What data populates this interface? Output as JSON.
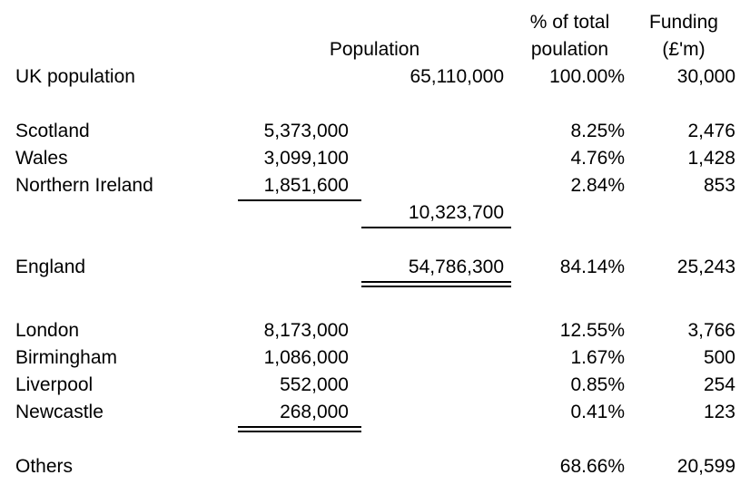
{
  "sheet": {
    "headers": {
      "population": "Population",
      "pct_total_line1": "% of total",
      "pct_total_line2": "poulation",
      "funding_line1": "Funding",
      "funding_line2": "(£'m)"
    },
    "rows": [
      {
        "label": "UK population",
        "pop_sub": "",
        "pop_total": "65,110,000",
        "pct": "100.00%",
        "funding": "30,000"
      },
      {
        "label": "Scotland",
        "pop_sub": "5,373,000",
        "pop_total": "",
        "pct": "8.25%",
        "funding": "2,476"
      },
      {
        "label": "Wales",
        "pop_sub": "3,099,100",
        "pop_total": "",
        "pct": "4.76%",
        "funding": "1,428"
      },
      {
        "label": "Northern Ireland",
        "pop_sub": "1,851,600",
        "pop_total": "",
        "pct": "2.84%",
        "funding": "853"
      },
      {
        "label": "",
        "pop_sub": "",
        "pop_total": "10,323,700",
        "pct": "",
        "funding": ""
      },
      {
        "label": "England",
        "pop_sub": "",
        "pop_total": "54,786,300",
        "pct": "84.14%",
        "funding": "25,243"
      },
      {
        "label": "London",
        "pop_sub": "8,173,000",
        "pop_total": "",
        "pct": "12.55%",
        "funding": "3,766"
      },
      {
        "label": "Birmingham",
        "pop_sub": "1,086,000",
        "pop_total": "",
        "pct": "1.67%",
        "funding": "500"
      },
      {
        "label": "Liverpool",
        "pop_sub": "552,000",
        "pop_total": "",
        "pct": "0.85%",
        "funding": "254"
      },
      {
        "label": "Newcastle",
        "pop_sub": "268,000",
        "pop_total": "",
        "pct": "0.41%",
        "funding": "123"
      },
      {
        "label": "Others",
        "pop_sub": "",
        "pop_total": "",
        "pct": "68.66%",
        "funding": "20,599"
      }
    ]
  }
}
